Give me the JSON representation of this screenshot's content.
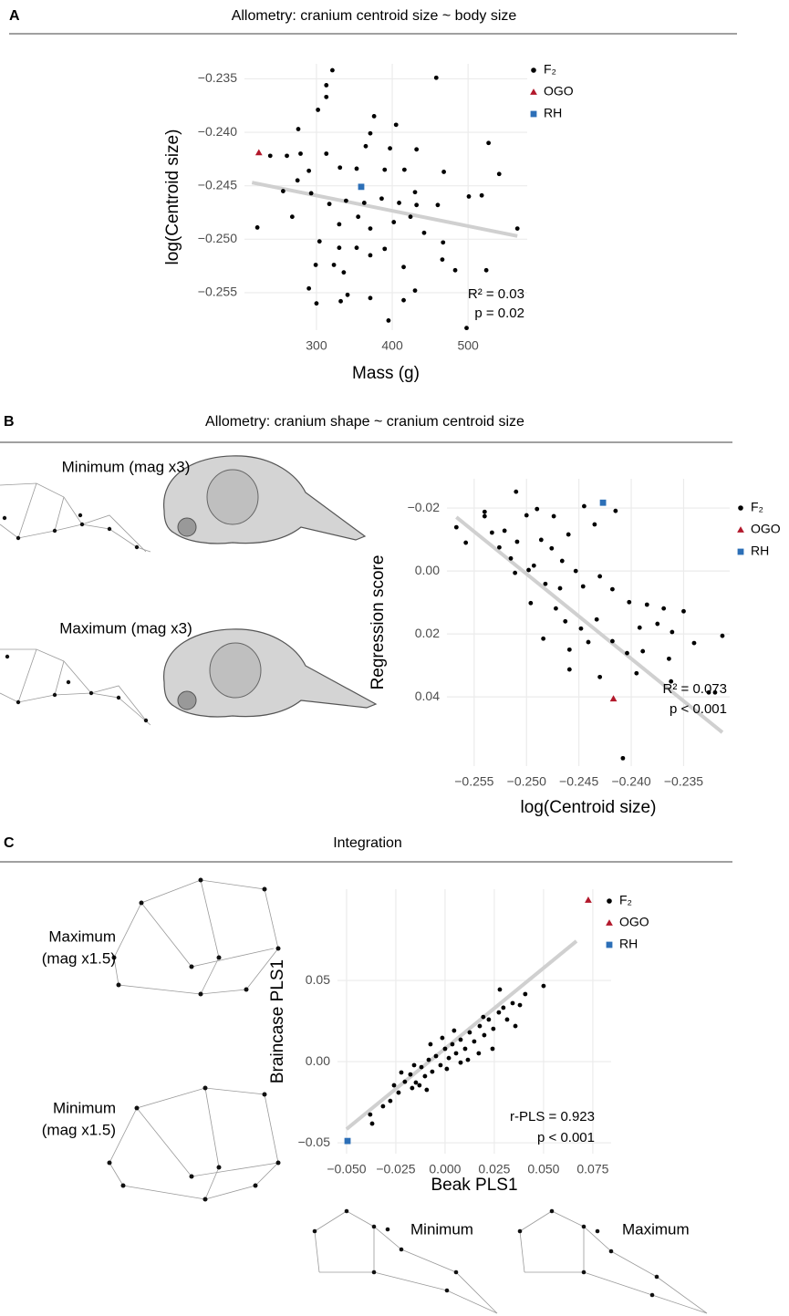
{
  "chart_data": [
    {
      "type": "scatter",
      "panel": "A",
      "title": "Allometry: cranium centroid size ~ body size",
      "x_label": "Mass (g)",
      "y_label": "log(Centroid size)",
      "xlim": [
        205,
        578
      ],
      "ylim": [
        -0.2585,
        -0.2336
      ],
      "xticks": [
        300,
        400,
        500
      ],
      "yticks": [
        {
          "value": -0.235,
          "label": "−0.235"
        },
        {
          "value": -0.24,
          "label": "−0.240"
        },
        {
          "value": -0.245,
          "label": "−0.245"
        },
        {
          "value": -0.25,
          "label": "−0.250"
        },
        {
          "value": -0.255,
          "label": "−0.255"
        }
      ],
      "grid": true,
      "series": [
        {
          "name": "F₂",
          "color": "#000000",
          "marker": "circle",
          "x": [
            321,
            458,
            313,
            313,
            302,
            376,
            371,
            405,
            276,
            239,
            261,
            279,
            313,
            365,
            397,
            432,
            527,
            541,
            290,
            331,
            353,
            390,
            416,
            468,
            275,
            293,
            256,
            317,
            339,
            363,
            386,
            409,
            432,
            460,
            501,
            518,
            565,
            222,
            268,
            304,
            330,
            371,
            402,
            424,
            442,
            467,
            330,
            353,
            390,
            299,
            336,
            371,
            415,
            466,
            483,
            524,
            290,
            341,
            300,
            332,
            371,
            415,
            395,
            498,
            430,
            355,
            430,
            323
          ],
          "values": [
            -0.2342,
            -0.2349,
            -0.2356,
            -0.2367,
            -0.2379,
            -0.2385,
            -0.2401,
            -0.2393,
            -0.2397,
            -0.2422,
            -0.2422,
            -0.242,
            -0.242,
            -0.2413,
            -0.2415,
            -0.2416,
            -0.241,
            -0.2439,
            -0.2436,
            -0.2433,
            -0.2434,
            -0.2435,
            -0.2435,
            -0.2437,
            -0.2445,
            -0.2457,
            -0.2455,
            -0.2467,
            -0.2464,
            -0.2466,
            -0.2462,
            -0.2466,
            -0.2468,
            -0.2468,
            -0.246,
            -0.2459,
            -0.249,
            -0.2489,
            -0.2479,
            -0.2502,
            -0.2486,
            -0.249,
            -0.2484,
            -0.2479,
            -0.2494,
            -0.2503,
            -0.2508,
            -0.2508,
            -0.2509,
            -0.2524,
            -0.2531,
            -0.2515,
            -0.2526,
            -0.2519,
            -0.2529,
            -0.2529,
            -0.2546,
            -0.2552,
            -0.256,
            -0.2558,
            -0.2555,
            -0.2557,
            -0.2576,
            -0.2583,
            -0.2548,
            -0.2479,
            -0.2456,
            -0.2524
          ]
        },
        {
          "name": "OGO",
          "color": "#b2182b",
          "marker": "triangle",
          "x": [
            224
          ],
          "values": [
            -0.2419
          ]
        },
        {
          "name": "RH",
          "color": "#2c6fb7",
          "marker": "square",
          "x": [
            359
          ],
          "values": [
            -0.2451
          ]
        }
      ],
      "trend": {
        "color": "#d0d0d0",
        "x": [
          215,
          565
        ],
        "y": [
          -0.2447,
          -0.2497
        ]
      },
      "annotations": [
        "R² = 0.03",
        "p = 0.02"
      ]
    },
    {
      "type": "scatter",
      "panel": "B",
      "title": "Allometry: cranium shape ~ cranium centroid size",
      "x_label": "log(Centroid size)",
      "y_label": "Regression score",
      "xlim": [
        -0.2576,
        -0.2306
      ],
      "ylim": [
        -0.0293,
        0.062
      ],
      "y_reversed": true,
      "xticks": [
        {
          "value": -0.255,
          "label": "−0.255"
        },
        {
          "value": -0.25,
          "label": "−0.250"
        },
        {
          "value": -0.245,
          "label": "−0.245"
        },
        {
          "value": -0.24,
          "label": "−0.240"
        },
        {
          "value": -0.235,
          "label": "−0.235"
        }
      ],
      "yticks": [
        {
          "value": -0.02,
          "label": "−0.02"
        },
        {
          "value": 0,
          "label": "0.00"
        },
        {
          "value": 0.02,
          "label": "0.02"
        },
        {
          "value": 0.04,
          "label": "0.04"
        }
      ],
      "grid": true,
      "illustration_labels": [
        "Minimum (mag x3)",
        "Maximum (mag x3)"
      ],
      "series": [
        {
          "name": "F₂",
          "color": "#000000",
          "marker": "circle",
          "x": [
            -0.251,
            -0.254,
            -0.2567,
            -0.2558,
            -0.254,
            -0.2533,
            -0.2521,
            -0.2509,
            -0.25,
            -0.249,
            -0.2474,
            -0.246,
            -0.2445,
            -0.2435,
            -0.2415,
            -0.2476,
            -0.2466,
            -0.2453,
            -0.2482,
            -0.2498,
            -0.2515,
            -0.2446,
            -0.243,
            -0.2418,
            -0.2402,
            -0.2385,
            -0.2369,
            -0.235,
            -0.2392,
            -0.2375,
            -0.2433,
            -0.2448,
            -0.2463,
            -0.2484,
            -0.2472,
            -0.2496,
            -0.2459,
            -0.2441,
            -0.2418,
            -0.2404,
            -0.2389,
            -0.2364,
            -0.234,
            -0.2313,
            -0.2361,
            -0.2459,
            -0.243,
            -0.2395,
            -0.2362,
            -0.2326,
            -0.232,
            -0.2408,
            -0.2526,
            -0.2486,
            -0.2511,
            -0.2468,
            -0.2493
          ],
          "values": [
            -0.0252,
            -0.0188,
            -0.0139,
            -0.009,
            -0.0174,
            -0.0122,
            -0.0128,
            -0.0093,
            -0.0177,
            -0.0197,
            -0.0174,
            -0.0116,
            -0.0206,
            -0.0148,
            -0.0191,
            -0.0072,
            -0.0032,
            0,
            0.0041,
            -0.0003,
            -0.004,
            0.0049,
            0.0017,
            0.0058,
            0.0099,
            0.0107,
            0.0119,
            0.0128,
            0.018,
            0.0168,
            0.0154,
            0.0183,
            0.016,
            0.0215,
            0.0119,
            0.0102,
            0.025,
            0.0226,
            0.0223,
            0.0261,
            0.0255,
            0.0279,
            0.0229,
            0.0206,
            0.0194,
            0.0313,
            0.0337,
            0.0325,
            0.0351,
            0.0386,
            0.0386,
            0.0595,
            -0.0075,
            -0.0099,
            0.0006,
            0.0055,
            -0.0017
          ]
        },
        {
          "name": "OGO",
          "color": "#b2182b",
          "marker": "triangle",
          "x": [
            -0.2417
          ],
          "values": [
            0.0406
          ]
        },
        {
          "name": "RH",
          "color": "#2c6fb7",
          "marker": "square",
          "x": [
            -0.2427
          ],
          "values": [
            -0.0217
          ]
        }
      ],
      "trend": {
        "color": "#d0d0d0",
        "x": [
          -0.2567,
          -0.2313
        ],
        "y": [
          -0.0171,
          0.0513
        ]
      },
      "annotations": [
        "R² = 0.073",
        "p < 0.001"
      ]
    },
    {
      "type": "scatter",
      "panel": "C",
      "title": "Integration",
      "x_label": "Beak PLS1",
      "y_label": "Braincase PLS1",
      "xlim": [
        -0.0546,
        0.0843
      ],
      "ylim": [
        -0.0567,
        0.1062
      ],
      "xticks": [
        {
          "value": -0.05,
          "label": "−0.050"
        },
        {
          "value": -0.025,
          "label": "−0.025"
        },
        {
          "value": 0,
          "label": "0.000"
        },
        {
          "value": 0.025,
          "label": "0.025"
        },
        {
          "value": 0.05,
          "label": "0.050"
        },
        {
          "value": 0.075,
          "label": "0.075"
        }
      ],
      "yticks": [
        {
          "value": -0.05,
          "label": "−0.05"
        },
        {
          "value": 0,
          "label": "0.00"
        },
        {
          "value": 0.05,
          "label": "0.05"
        }
      ],
      "grid": true,
      "illustration_labels": [
        "Maximum",
        "(mag x1.5)",
        "Minimum",
        "(mag x1.5)",
        "Minimum",
        "Maximum"
      ],
      "series": [
        {
          "name": "F₂",
          "color": "#000000",
          "marker": "circle",
          "x": [
            -0.038,
            -0.037,
            -0.0278,
            -0.0236,
            -0.0204,
            -0.0176,
            -0.0148,
            -0.012,
            -0.0102,
            -0.0083,
            -0.0065,
            -0.0046,
            -0.0023,
            0,
            0.0019,
            0.0037,
            0.0056,
            0.0079,
            0.0102,
            0.0125,
            0.0148,
            0.0176,
            0.0199,
            0.0222,
            0.0245,
            0.0273,
            0.0296,
            0.0315,
            0.0343,
            0.038,
            0.0407,
            0.05,
            0.0278,
            -0.0222,
            -0.0167,
            -0.013,
            -0.0074,
            -0.0014,
            0.0046,
            0.0116,
            0.0171,
            0.0241,
            -0.0315,
            -0.0259,
            -0.0093,
            0.0079,
            0.0194,
            0.0357,
            -0.0157,
            0.0009
          ],
          "values": [
            -0.0326,
            -0.0382,
            -0.0242,
            -0.0191,
            -0.0124,
            -0.0079,
            -0.0129,
            -0.0034,
            -0.009,
            0.0011,
            -0.0062,
            0.0034,
            -0.0022,
            0.0079,
            0.0022,
            0.0107,
            0.0051,
            0.0135,
            0.0079,
            0.018,
            0.0124,
            0.0219,
            0.0163,
            0.0259,
            0.0202,
            0.0303,
            0.0332,
            0.0259,
            0.036,
            0.0348,
            0.0416,
            0.0466,
            0.0444,
            -0.0067,
            -0.0163,
            -0.0146,
            0.0107,
            0.0146,
            0.0191,
            0.0011,
            0.0051,
            0.0079,
            -0.0275,
            -0.0146,
            -0.0174,
            -0.0006,
            0.0275,
            0.0219,
            -0.0022,
            -0.0045
          ]
        },
        {
          "name": "OGO",
          "color": "#b2182b",
          "marker": "triangle",
          "x": [
            0.0727
          ],
          "values": [
            0.0995
          ]
        },
        {
          "name": "RH",
          "color": "#2c6fb7",
          "marker": "square",
          "x": [
            -0.0495
          ],
          "values": [
            -0.0489
          ]
        }
      ],
      "trend": {
        "color": "#d0d0d0",
        "x": [
          -0.05,
          0.0667
        ],
        "y": [
          -0.0416,
          0.0742
        ]
      },
      "annotations": [
        "r-PLS = 0.923",
        "p < 0.001"
      ]
    }
  ]
}
